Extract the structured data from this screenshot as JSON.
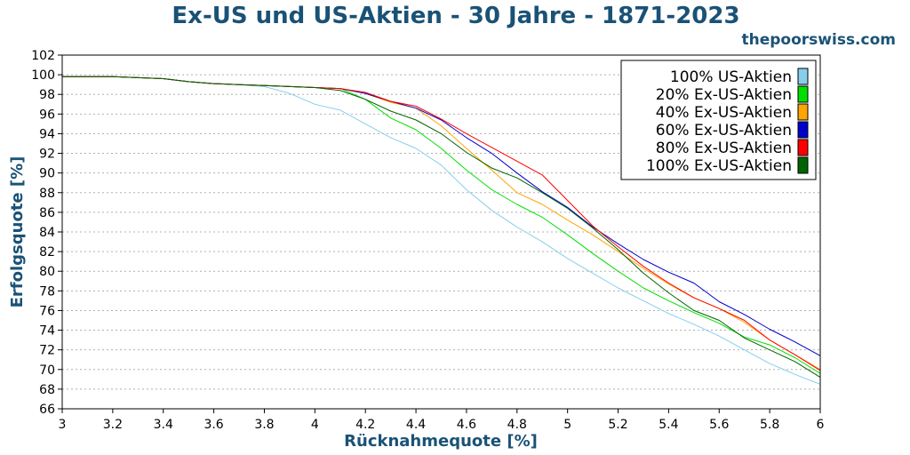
{
  "header": {
    "title": "Ex-US und US-Aktien - 30 Jahre - 1871-2023",
    "watermark": "thepoorswiss.com"
  },
  "chart_data": {
    "type": "line",
    "title": "Ex-US und US-Aktien - 30 Jahre - 1871-2023",
    "xlabel": "Rücknahmequote [%]",
    "ylabel": "Erfolgsquote [%]",
    "xlim": [
      3,
      6
    ],
    "ylim": [
      66,
      102
    ],
    "xticks": [
      "3",
      "3.2",
      "3.4",
      "3.6",
      "3.8",
      "4",
      "4.2",
      "4.4",
      "4.6",
      "4.8",
      "5",
      "5.2",
      "5.4",
      "5.6",
      "5.8",
      "6"
    ],
    "yticks": [
      "66",
      "68",
      "70",
      "72",
      "74",
      "76",
      "78",
      "80",
      "82",
      "84",
      "86",
      "88",
      "90",
      "92",
      "94",
      "96",
      "98",
      "100",
      "102"
    ],
    "grid": "horizontal dotted",
    "legend_position": "top-right",
    "x": [
      3.0,
      3.1,
      3.2,
      3.3,
      3.4,
      3.5,
      3.6,
      3.7,
      3.8,
      3.9,
      4.0,
      4.1,
      4.2,
      4.3,
      4.4,
      4.5,
      4.6,
      4.7,
      4.8,
      4.9,
      5.0,
      5.1,
      5.2,
      5.3,
      5.4,
      5.5,
      5.6,
      5.7,
      5.8,
      5.9,
      6.0
    ],
    "series": [
      {
        "name": "100% US-Aktien",
        "color": "#87ceeb",
        "values": [
          99.8,
          99.8,
          99.8,
          99.7,
          99.6,
          99.3,
          99.1,
          99.0,
          98.8,
          98.1,
          97.0,
          96.4,
          95.0,
          93.6,
          92.5,
          90.8,
          88.3,
          86.2,
          84.5,
          83.0,
          81.3,
          79.8,
          78.3,
          77.0,
          75.7,
          74.6,
          73.4,
          72.0,
          70.6,
          69.5,
          68.5
        ]
      },
      {
        "name": "20% Ex-US-Aktien",
        "color": "#00e000",
        "values": [
          99.8,
          99.8,
          99.8,
          99.7,
          99.6,
          99.3,
          99.1,
          99.0,
          98.9,
          98.8,
          98.7,
          98.6,
          97.5,
          95.6,
          94.4,
          92.5,
          90.3,
          88.3,
          86.8,
          85.5,
          83.7,
          81.8,
          80.0,
          78.3,
          77.0,
          75.8,
          74.7,
          73.3,
          72.5,
          71.2,
          69.6
        ]
      },
      {
        "name": "40% Ex-US-Aktien",
        "color": "#ffa500",
        "values": [
          99.8,
          99.8,
          99.8,
          99.7,
          99.6,
          99.3,
          99.1,
          99.0,
          98.9,
          98.8,
          98.7,
          98.6,
          98.1,
          97.2,
          96.6,
          94.8,
          92.5,
          90.3,
          88.0,
          86.8,
          85.2,
          83.7,
          82.0,
          80.3,
          78.7,
          77.3,
          76.2,
          74.8,
          73.0,
          71.5,
          70.0
        ]
      },
      {
        "name": "60% Ex-US-Aktien",
        "color": "#0000cd",
        "values": [
          99.8,
          99.8,
          99.8,
          99.7,
          99.6,
          99.3,
          99.1,
          99.0,
          98.9,
          98.8,
          98.7,
          98.6,
          98.1,
          97.3,
          96.6,
          95.4,
          93.6,
          92.0,
          90.0,
          88.1,
          86.5,
          84.5,
          82.8,
          81.2,
          79.9,
          78.8,
          76.9,
          75.6,
          74.1,
          72.8,
          71.4
        ]
      },
      {
        "name": "80% Ex-US-Aktien",
        "color": "#ff0000",
        "values": [
          99.8,
          99.8,
          99.8,
          99.7,
          99.6,
          99.3,
          99.1,
          99.0,
          98.9,
          98.8,
          98.7,
          98.6,
          98.2,
          97.3,
          96.8,
          95.5,
          94.0,
          92.6,
          91.2,
          89.8,
          87.2,
          84.6,
          82.5,
          80.5,
          78.8,
          77.3,
          76.2,
          75.0,
          73.0,
          71.5,
          69.9
        ]
      },
      {
        "name": "100% Ex-US-Aktien",
        "color": "#006400",
        "values": [
          99.8,
          99.8,
          99.8,
          99.7,
          99.6,
          99.3,
          99.1,
          99.0,
          98.9,
          98.8,
          98.7,
          98.4,
          97.5,
          96.3,
          95.4,
          94.0,
          92.1,
          90.5,
          89.5,
          88.0,
          86.4,
          84.4,
          82.2,
          79.8,
          77.8,
          76.0,
          75.0,
          73.2,
          72.0,
          70.8,
          69.2
        ]
      }
    ]
  }
}
